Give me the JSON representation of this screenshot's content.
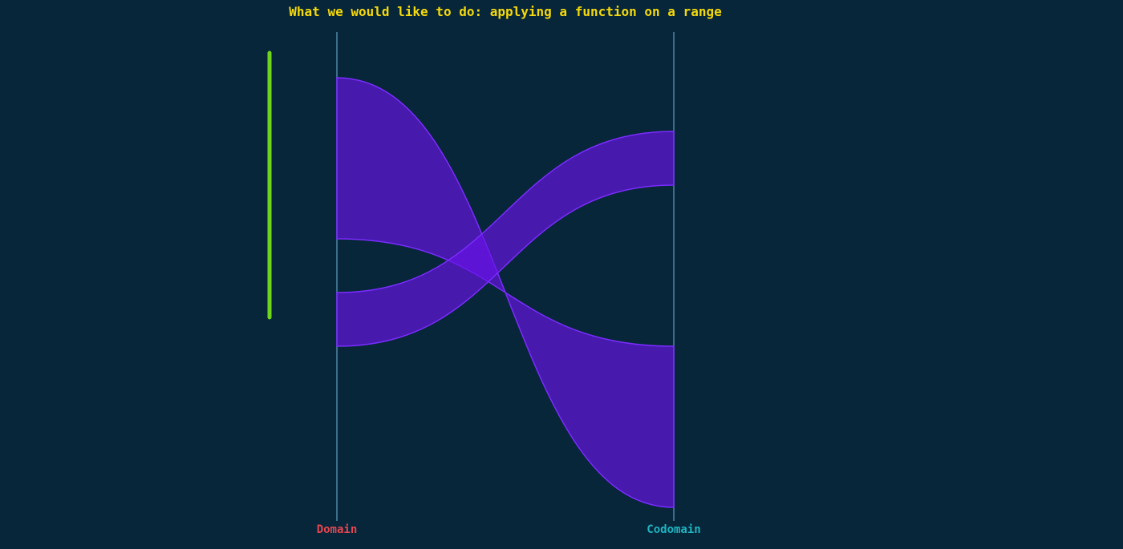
{
  "title": "What we would like to do: applying a function on a range",
  "axes": {
    "domain_label": "Domain",
    "codomain_label": "Codomain"
  },
  "colors": {
    "background": "#07263a",
    "title": "#f5d90a",
    "domain_label": "#e8454f",
    "codomain_label": "#1fb5c2",
    "axis_line": "#4f86a6",
    "range_bar": "#6ed41c",
    "band_fill": "#6a12ea",
    "band_stroke": "#7a2cff"
  }
}
